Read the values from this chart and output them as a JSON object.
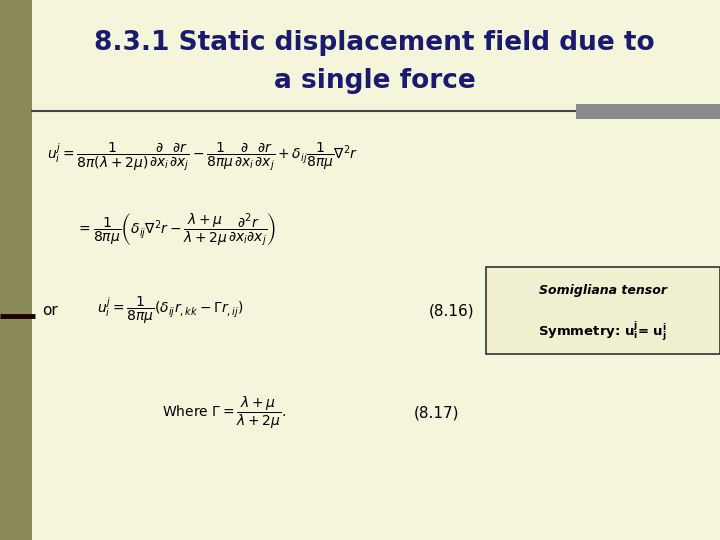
{
  "title_line1": "8.3.1 Static displacement field due to",
  "title_line2": "a single force",
  "background_color": "#f5f5dc",
  "title_color": "#1a1a6e",
  "left_bar_color": "#8b8b5a",
  "right_bar_color": "#8b8b8b",
  "box_fill_color": "#f0f0d0",
  "box_edge_color": "#333333",
  "eq_num1": "(8.16)",
  "eq_num2": "(8.17)",
  "label_or": "or",
  "box_text1": "Somigliana tensor",
  "figsize": [
    7.2,
    5.4
  ],
  "dpi": 100
}
